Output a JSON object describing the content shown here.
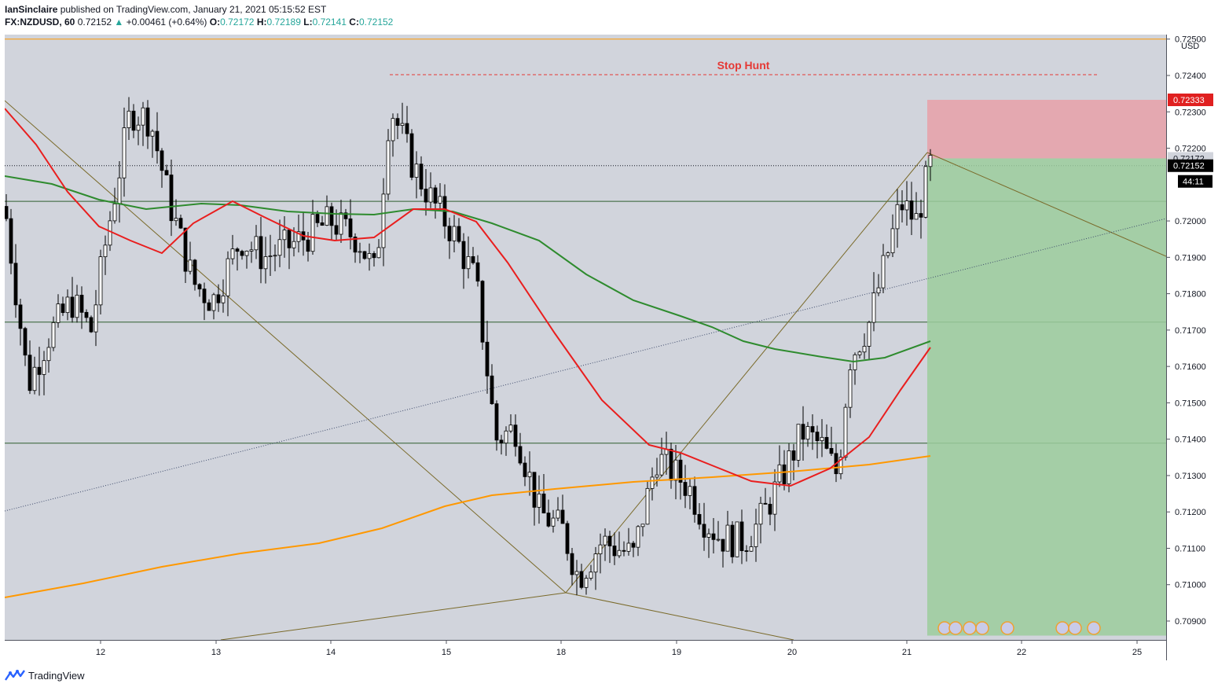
{
  "header": {
    "author": "IanSinclaire",
    "published_text": " published on TradingView.com, January 21, 2021 05:15:52 EST"
  },
  "symbol": {
    "name": "FX:NZDUSD, 60",
    "last": "0.72152",
    "arrow": "▲",
    "change": "+0.00461 (+0.64%)",
    "o_label": "O:",
    "o": "0.72172",
    "h_label": "H:",
    "h": "0.72189",
    "l_label": "L:",
    "l": "0.72141",
    "c_label": "C:",
    "c": "0.72152"
  },
  "footer": {
    "brand": "TradingView"
  },
  "chart_data": {
    "type": "candlestick",
    "title": "",
    "currency_label": "USD",
    "annotation": "Stop Hunt",
    "y_ticks": [
      "0.72500",
      "0.72400",
      "0.72300",
      "0.72200",
      "0.72000",
      "0.71900",
      "0.71800",
      "0.71700",
      "0.71600",
      "0.71500",
      "0.71400",
      "0.71300",
      "0.71200",
      "0.71100",
      "0.71000",
      "0.70900"
    ],
    "x_ticks": [
      "12",
      "13",
      "14",
      "15",
      "18",
      "19",
      "20",
      "21",
      "22",
      "25"
    ],
    "price_tags": {
      "stop": "0.72333",
      "entry": "0.72172",
      "last": "0.72152",
      "countdown": "44:11"
    },
    "colors": {
      "up": "#ffffff",
      "down": "#000000",
      "ema_fast": "#e91e1e",
      "ema_mid": "#2e8b2e",
      "ema_slow": "#ff9800",
      "stop_zone": "#e8a0a8",
      "target_zone": "#9ccc9c",
      "trend_lines": "#7a6a2a",
      "annotation": "#e53935"
    },
    "horizontal_levels": [
      0.725,
      0.72054,
      0.71722,
      0.71389
    ],
    "candles_hint": "approximate hourly OHLC Jan 11–21, 2021",
    "ohlc": []
  }
}
